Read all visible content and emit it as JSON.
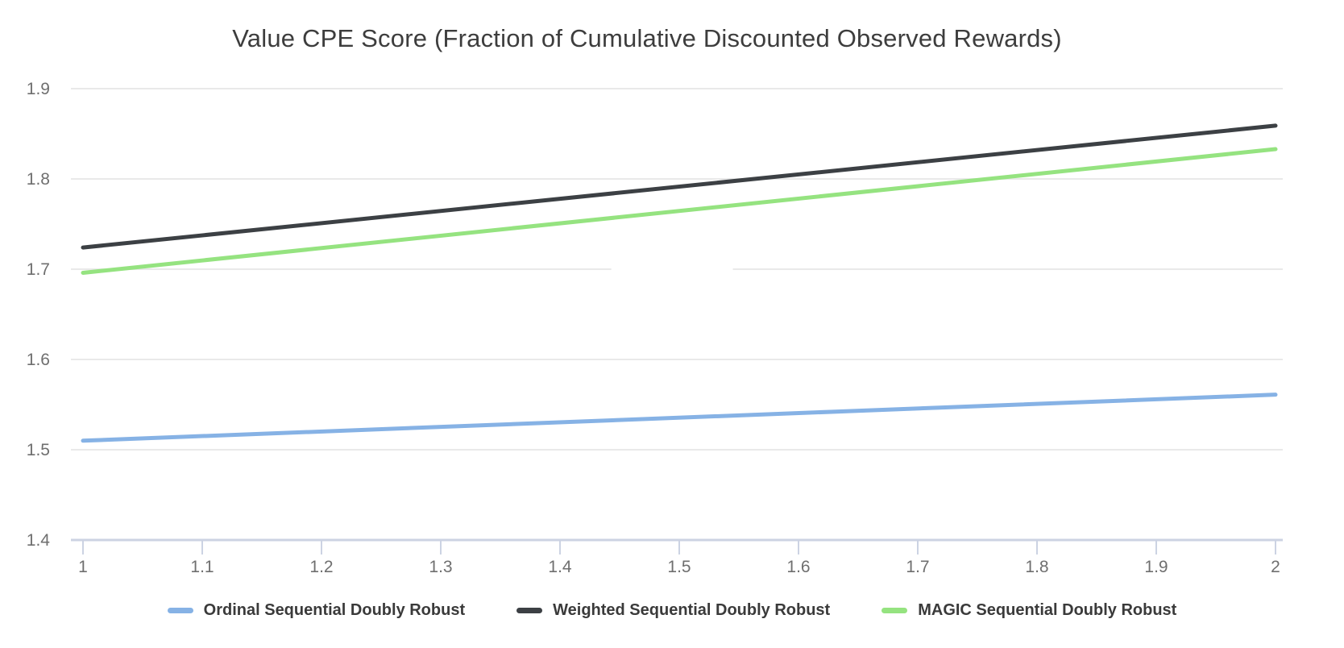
{
  "chart_data": {
    "type": "line",
    "title": "Value CPE Score (Fraction of Cumulative Discounted Observed Rewards)",
    "x": [
      1,
      2
    ],
    "series": [
      {
        "name": "Ordinal Sequential Doubly Robust",
        "values": [
          1.51,
          1.561
        ],
        "color": "#86b2e5"
      },
      {
        "name": "Weighted Sequential Doubly Robust",
        "values": [
          1.724,
          1.859
        ],
        "color": "#3c4044"
      },
      {
        "name": "MAGIC Sequential Doubly Robust",
        "values": [
          1.696,
          1.833
        ],
        "color": "#95e380"
      }
    ],
    "xlabel": "",
    "ylabel": "",
    "xlim": [
      1,
      2
    ],
    "ylim": [
      1.4,
      1.9
    ],
    "x_ticks": [
      "1",
      "1.1",
      "1.2",
      "1.3",
      "1.4",
      "1.5",
      "1.6",
      "1.7",
      "1.8",
      "1.9",
      "2"
    ],
    "x_tick_values": [
      1,
      1.1,
      1.2,
      1.3,
      1.4,
      1.5,
      1.6,
      1.7,
      1.8,
      1.9,
      2
    ],
    "y_ticks": [
      "1.4",
      "1.5",
      "1.6",
      "1.7",
      "1.8",
      "1.9"
    ],
    "y_tick_values": [
      1.4,
      1.5,
      1.6,
      1.7,
      1.8,
      1.9
    ],
    "grid": "horizontal",
    "legend_position": "bottom",
    "gridline_gap": {
      "y": 1.7,
      "x_from": 1.443,
      "x_to": 1.545
    }
  },
  "colors": {
    "background": "#ffffff",
    "title_text": "#3d3d3d",
    "legend_text": "#3a3a3a",
    "tick_label": "#6f6f6f",
    "gridline": "#e9e9e9",
    "axis_line": "#ccd3e3"
  }
}
